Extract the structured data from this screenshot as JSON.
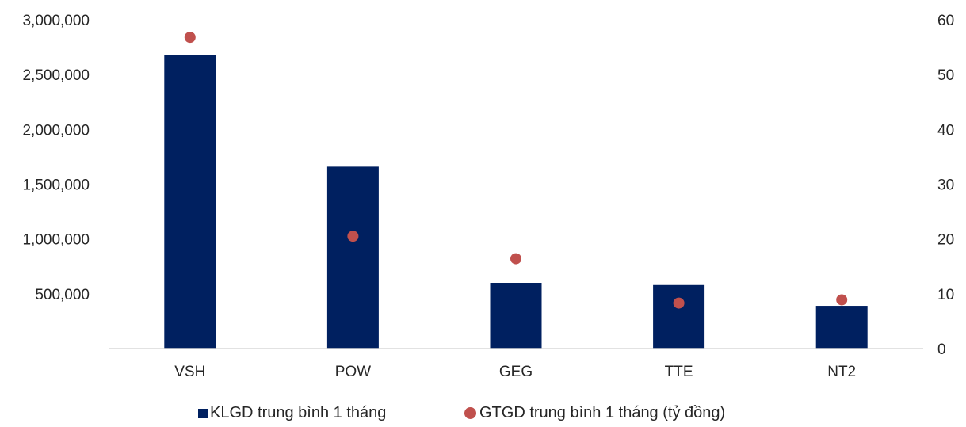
{
  "chart_data": {
    "type": "bar",
    "categories": [
      "VSH",
      "POW",
      "GEG",
      "TTE",
      "NT2"
    ],
    "series": [
      {
        "name": "KLGD trung bình 1 tháng",
        "type": "bar",
        "axis": "left",
        "color": "#002060",
        "values": [
          2680000,
          1660000,
          600000,
          580000,
          390000
        ]
      },
      {
        "name": "GTGD trung bình 1 tháng (tỷ đồng)",
        "type": "scatter",
        "axis": "right",
        "color": "#C0504D",
        "values": [
          56.8,
          20.5,
          16.4,
          8.3,
          8.9
        ]
      }
    ],
    "y_left": {
      "ylim": [
        0,
        3000000
      ],
      "ticks": [
        500000,
        1000000,
        1500000,
        2000000,
        2500000,
        3000000
      ],
      "tick_labels": [
        "500,000",
        "1,000,000",
        "1,500,000",
        "2,000,000",
        "2,500,000",
        "3,000,000"
      ]
    },
    "y_right": {
      "ylim": [
        0,
        60
      ],
      "ticks": [
        0,
        10,
        20,
        30,
        40,
        50,
        60
      ],
      "tick_labels": [
        "0",
        "10",
        "20",
        "30",
        "40",
        "50",
        "60"
      ]
    },
    "grid": false,
    "legend_position": "bottom"
  }
}
